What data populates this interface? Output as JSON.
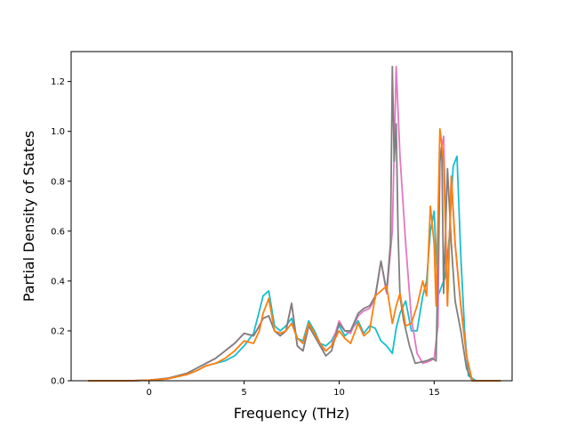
{
  "chart_data": {
    "type": "line",
    "title": "",
    "xlabel": "Frequency (THz)",
    "ylabel": "Partial Density of States",
    "xlim": [
      -4.1,
      19.1
    ],
    "ylim": [
      0.0,
      1.32
    ],
    "xticks": [
      0,
      5,
      10,
      15
    ],
    "yticks": [
      0.0,
      0.2,
      0.4,
      0.6,
      0.8,
      1.0,
      1.2
    ],
    "xtick_labels": [
      "0",
      "5",
      "10",
      "15"
    ],
    "ytick_labels": [
      "0.0",
      "0.2",
      "0.4",
      "0.6",
      "0.8",
      "1.0",
      "1.2"
    ],
    "grid": false,
    "legend": null,
    "series": [
      {
        "color": "#17becf",
        "x": [
          -3.2,
          -1.0,
          0.0,
          1.0,
          2.0,
          2.5,
          3.0,
          3.5,
          4.0,
          4.5,
          5.0,
          5.5,
          5.8,
          6.0,
          6.3,
          6.6,
          6.9,
          7.2,
          7.5,
          7.8,
          8.1,
          8.4,
          8.7,
          9.0,
          9.3,
          9.6,
          10.0,
          10.3,
          10.6,
          11.0,
          11.3,
          11.6,
          11.9,
          12.2,
          12.5,
          12.8,
          13.0,
          13.2,
          13.5,
          13.8,
          14.1,
          14.4,
          14.6,
          14.8,
          15.0,
          15.2,
          15.4,
          15.6,
          15.8,
          16.0,
          16.2,
          16.4,
          16.6,
          16.8,
          17.2,
          18.5
        ],
        "y": [
          0.0,
          0.0,
          0.002,
          0.008,
          0.025,
          0.04,
          0.06,
          0.07,
          0.08,
          0.1,
          0.14,
          0.19,
          0.28,
          0.34,
          0.36,
          0.22,
          0.2,
          0.22,
          0.25,
          0.17,
          0.16,
          0.24,
          0.2,
          0.15,
          0.14,
          0.16,
          0.22,
          0.18,
          0.2,
          0.24,
          0.19,
          0.22,
          0.21,
          0.16,
          0.14,
          0.11,
          0.21,
          0.27,
          0.32,
          0.2,
          0.2,
          0.34,
          0.4,
          0.6,
          0.68,
          0.34,
          0.38,
          0.42,
          0.58,
          0.86,
          0.9,
          0.5,
          0.2,
          0.02,
          0.0,
          0.0
        ]
      },
      {
        "color": "#e377c2",
        "x": [
          -3.2,
          -1.0,
          0.0,
          1.0,
          2.0,
          2.5,
          3.0,
          3.5,
          4.0,
          4.5,
          5.0,
          5.5,
          5.8,
          6.0,
          6.3,
          6.6,
          6.9,
          7.2,
          7.5,
          7.8,
          8.1,
          8.4,
          8.7,
          9.0,
          9.3,
          9.6,
          10.0,
          10.3,
          10.6,
          11.0,
          11.3,
          11.6,
          11.9,
          12.2,
          12.5,
          12.8,
          13.0,
          13.2,
          13.5,
          13.8,
          14.1,
          14.4,
          14.6,
          14.8,
          15.0,
          15.2,
          15.3,
          15.5,
          15.7,
          15.9,
          16.1,
          16.4,
          16.7,
          17.0,
          18.5
        ],
        "y": [
          0.0,
          0.0,
          0.002,
          0.01,
          0.03,
          0.05,
          0.07,
          0.09,
          0.12,
          0.15,
          0.19,
          0.18,
          0.22,
          0.25,
          0.26,
          0.2,
          0.18,
          0.2,
          0.31,
          0.14,
          0.12,
          0.22,
          0.18,
          0.14,
          0.12,
          0.14,
          0.24,
          0.2,
          0.19,
          0.26,
          0.28,
          0.29,
          0.33,
          0.48,
          0.35,
          0.6,
          1.26,
          0.9,
          0.55,
          0.25,
          0.11,
          0.07,
          0.075,
          0.08,
          0.09,
          0.22,
          0.9,
          0.98,
          0.3,
          0.82,
          0.55,
          0.3,
          0.1,
          0.0,
          0.0
        ]
      },
      {
        "color": "#7f7f7f",
        "x": [
          -3.2,
          -1.0,
          0.0,
          1.0,
          2.0,
          2.5,
          3.0,
          3.5,
          4.0,
          4.5,
          5.0,
          5.5,
          5.8,
          6.0,
          6.3,
          6.6,
          6.9,
          7.2,
          7.5,
          7.8,
          8.1,
          8.4,
          8.7,
          9.0,
          9.3,
          9.6,
          10.0,
          10.3,
          10.6,
          11.0,
          11.3,
          11.6,
          11.9,
          12.2,
          12.5,
          12.7,
          12.8,
          12.9,
          13.0,
          13.1,
          13.2,
          13.4,
          13.7,
          14.0,
          14.3,
          14.6,
          14.9,
          15.1,
          15.3,
          15.4,
          15.5,
          15.7,
          15.9,
          16.1,
          16.4,
          16.7,
          17.0,
          18.5
        ],
        "y": [
          0.0,
          0.0,
          0.002,
          0.01,
          0.03,
          0.05,
          0.07,
          0.09,
          0.12,
          0.15,
          0.19,
          0.18,
          0.22,
          0.25,
          0.26,
          0.2,
          0.18,
          0.2,
          0.31,
          0.14,
          0.12,
          0.22,
          0.18,
          0.14,
          0.1,
          0.12,
          0.23,
          0.2,
          0.2,
          0.27,
          0.29,
          0.3,
          0.34,
          0.48,
          0.36,
          0.55,
          1.26,
          0.88,
          1.03,
          0.6,
          0.34,
          0.24,
          0.14,
          0.07,
          0.075,
          0.08,
          0.09,
          0.08,
          0.88,
          0.94,
          0.35,
          0.85,
          0.55,
          0.32,
          0.2,
          0.05,
          0.0,
          0.0
        ]
      },
      {
        "color": "#ff7f0e",
        "x": [
          -3.2,
          -1.0,
          0.0,
          1.0,
          2.0,
          2.5,
          3.0,
          3.5,
          4.0,
          4.5,
          5.0,
          5.5,
          5.8,
          6.0,
          6.3,
          6.6,
          6.9,
          7.2,
          7.5,
          7.8,
          8.1,
          8.4,
          8.7,
          9.0,
          9.3,
          9.6,
          10.0,
          10.3,
          10.6,
          11.0,
          11.3,
          11.6,
          11.9,
          12.2,
          12.5,
          12.8,
          13.0,
          13.2,
          13.5,
          13.8,
          14.1,
          14.4,
          14.6,
          14.8,
          15.0,
          15.1,
          15.3,
          15.5,
          15.7,
          15.9,
          16.1,
          16.4,
          16.7,
          17.0,
          18.5
        ],
        "y": [
          0.0,
          0.0,
          0.002,
          0.008,
          0.025,
          0.04,
          0.06,
          0.07,
          0.09,
          0.12,
          0.16,
          0.15,
          0.2,
          0.27,
          0.33,
          0.2,
          0.19,
          0.2,
          0.23,
          0.17,
          0.15,
          0.23,
          0.19,
          0.15,
          0.12,
          0.14,
          0.2,
          0.17,
          0.15,
          0.23,
          0.18,
          0.2,
          0.34,
          0.36,
          0.38,
          0.23,
          0.3,
          0.35,
          0.22,
          0.23,
          0.3,
          0.4,
          0.34,
          0.7,
          0.55,
          0.3,
          1.01,
          0.88,
          0.3,
          0.82,
          0.55,
          0.3,
          0.1,
          0.0,
          0.0
        ]
      }
    ]
  }
}
